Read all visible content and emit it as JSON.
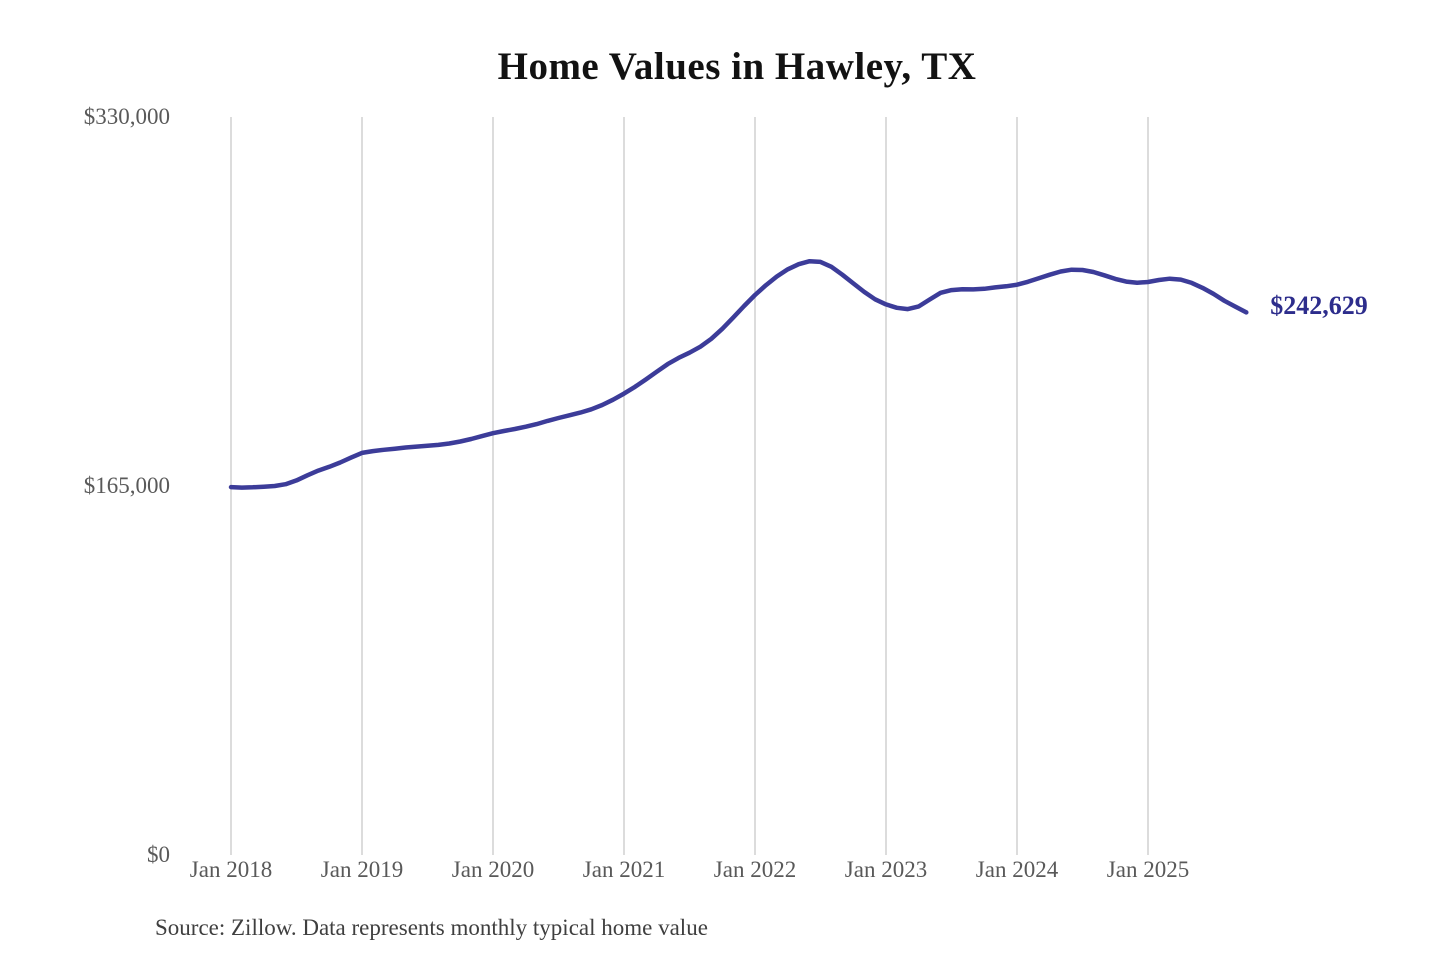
{
  "chart_data": {
    "type": "line",
    "title": "Home Values in Hawley, TX",
    "start_month": "Jan 2018",
    "end_month": "Oct 2025",
    "frequency": "monthly",
    "x_tick_labels": [
      "Jan 2018",
      "Jan 2019",
      "Jan 2020",
      "Jan 2021",
      "Jan 2022",
      "Jan 2023",
      "Jan 2024",
      "Jan 2025"
    ],
    "y_ticks": [
      {
        "label": "$330,000",
        "value": 330000
      },
      {
        "label": "$165,000",
        "value": 165000
      },
      {
        "label": "$0",
        "value": 0
      }
    ],
    "ylim": [
      0,
      330000
    ],
    "grid": "vertical-only",
    "legend": "none",
    "line_color": "#3c3c99",
    "end_label": "$242,629",
    "end_label_color": "#2d2d8c",
    "series": [
      {
        "name": "Typical home value",
        "values": [
          164500,
          164300,
          164400,
          164700,
          165000,
          165800,
          167500,
          169800,
          171900,
          173600,
          175500,
          177700,
          179800,
          180600,
          181200,
          181700,
          182200,
          182600,
          183000,
          183400,
          184000,
          184900,
          186000,
          187300,
          188600,
          189600,
          190500,
          191500,
          192700,
          194100,
          195400,
          196600,
          197800,
          199300,
          201200,
          203600,
          206300,
          209300,
          212600,
          216100,
          219500,
          222300,
          224600,
          227300,
          230800,
          235300,
          240300,
          245500,
          250400,
          254800,
          258700,
          261900,
          264200,
          265500,
          265200,
          263000,
          259500,
          255600,
          251800,
          248500,
          246200,
          244700,
          244100,
          245300,
          248400,
          251400,
          252600,
          253000,
          252900,
          253200,
          253800,
          254300,
          255000,
          256300,
          257900,
          259500,
          260900,
          261700,
          261600,
          260700,
          259200,
          257600,
          256400,
          255900,
          256200,
          257100,
          257700,
          257300,
          255800,
          253600,
          250900,
          247800,
          245200,
          242629
        ]
      }
    ]
  },
  "source_note": "Source: Zillow. Data represents monthly typical home value"
}
